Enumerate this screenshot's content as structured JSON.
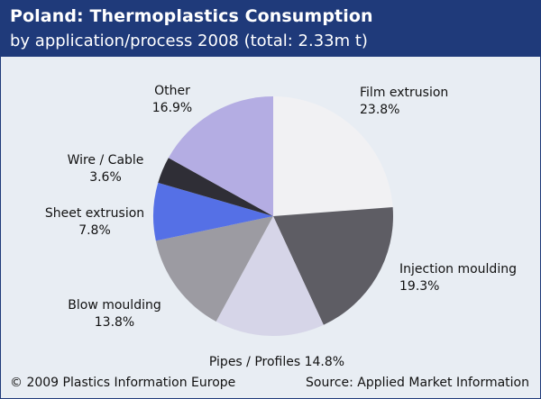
{
  "header": {
    "title": "Poland: Thermoplastics Consumption",
    "subtitle": "by application/process 2008 (total: 2.33m t)"
  },
  "footer": {
    "copyright": "© 2009 Plastics Information Europe",
    "source": "Source: Applied Market Information"
  },
  "colors": {
    "header_bg": "#1f3a7a",
    "panel_bg": "#e8edf3"
  },
  "chart_data": {
    "type": "pie",
    "title": "Poland: Thermoplastics Consumption",
    "subtitle": "by application/process 2008 (total: 2.33m t)",
    "slices": [
      {
        "name": "Film extrusion",
        "value": 23.8,
        "value_label": "23.8%",
        "color": "#f1f1f3"
      },
      {
        "name": "Injection moulding",
        "value": 19.3,
        "value_label": "19.3%",
        "color": "#5e5d64"
      },
      {
        "name": "Pipes / Profiles",
        "value": 14.8,
        "value_label": "14.8%",
        "color": "#d6d5e8"
      },
      {
        "name": "Blow moulding",
        "value": 13.8,
        "value_label": "13.8%",
        "color": "#9c9ba2"
      },
      {
        "name": "Sheet extrusion",
        "value": 7.8,
        "value_label": "7.8%",
        "color": "#5570e6"
      },
      {
        "name": "Wire / Cable",
        "value": 3.6,
        "value_label": "3.6%",
        "color": "#2f2e36"
      },
      {
        "name": "Other",
        "value": 16.9,
        "value_label": "16.9%",
        "color": "#b4ade3"
      }
    ],
    "start": "12 o'clock",
    "direction": "clockwise",
    "labels": [
      {
        "lines": [
          "Film extrusion",
          "23.8%"
        ]
      },
      {
        "lines": [
          "Injection moulding",
          "19.3%"
        ]
      },
      {
        "lines": [
          "Pipes / Profiles 14.8%"
        ]
      },
      {
        "lines": [
          "Blow moulding",
          "13.8%"
        ]
      },
      {
        "lines": [
          "Sheet extrusion",
          "7.8%"
        ]
      },
      {
        "lines": [
          "Wire / Cable",
          "3.6%"
        ]
      },
      {
        "lines": [
          "Other",
          "16.9%"
        ]
      }
    ]
  }
}
